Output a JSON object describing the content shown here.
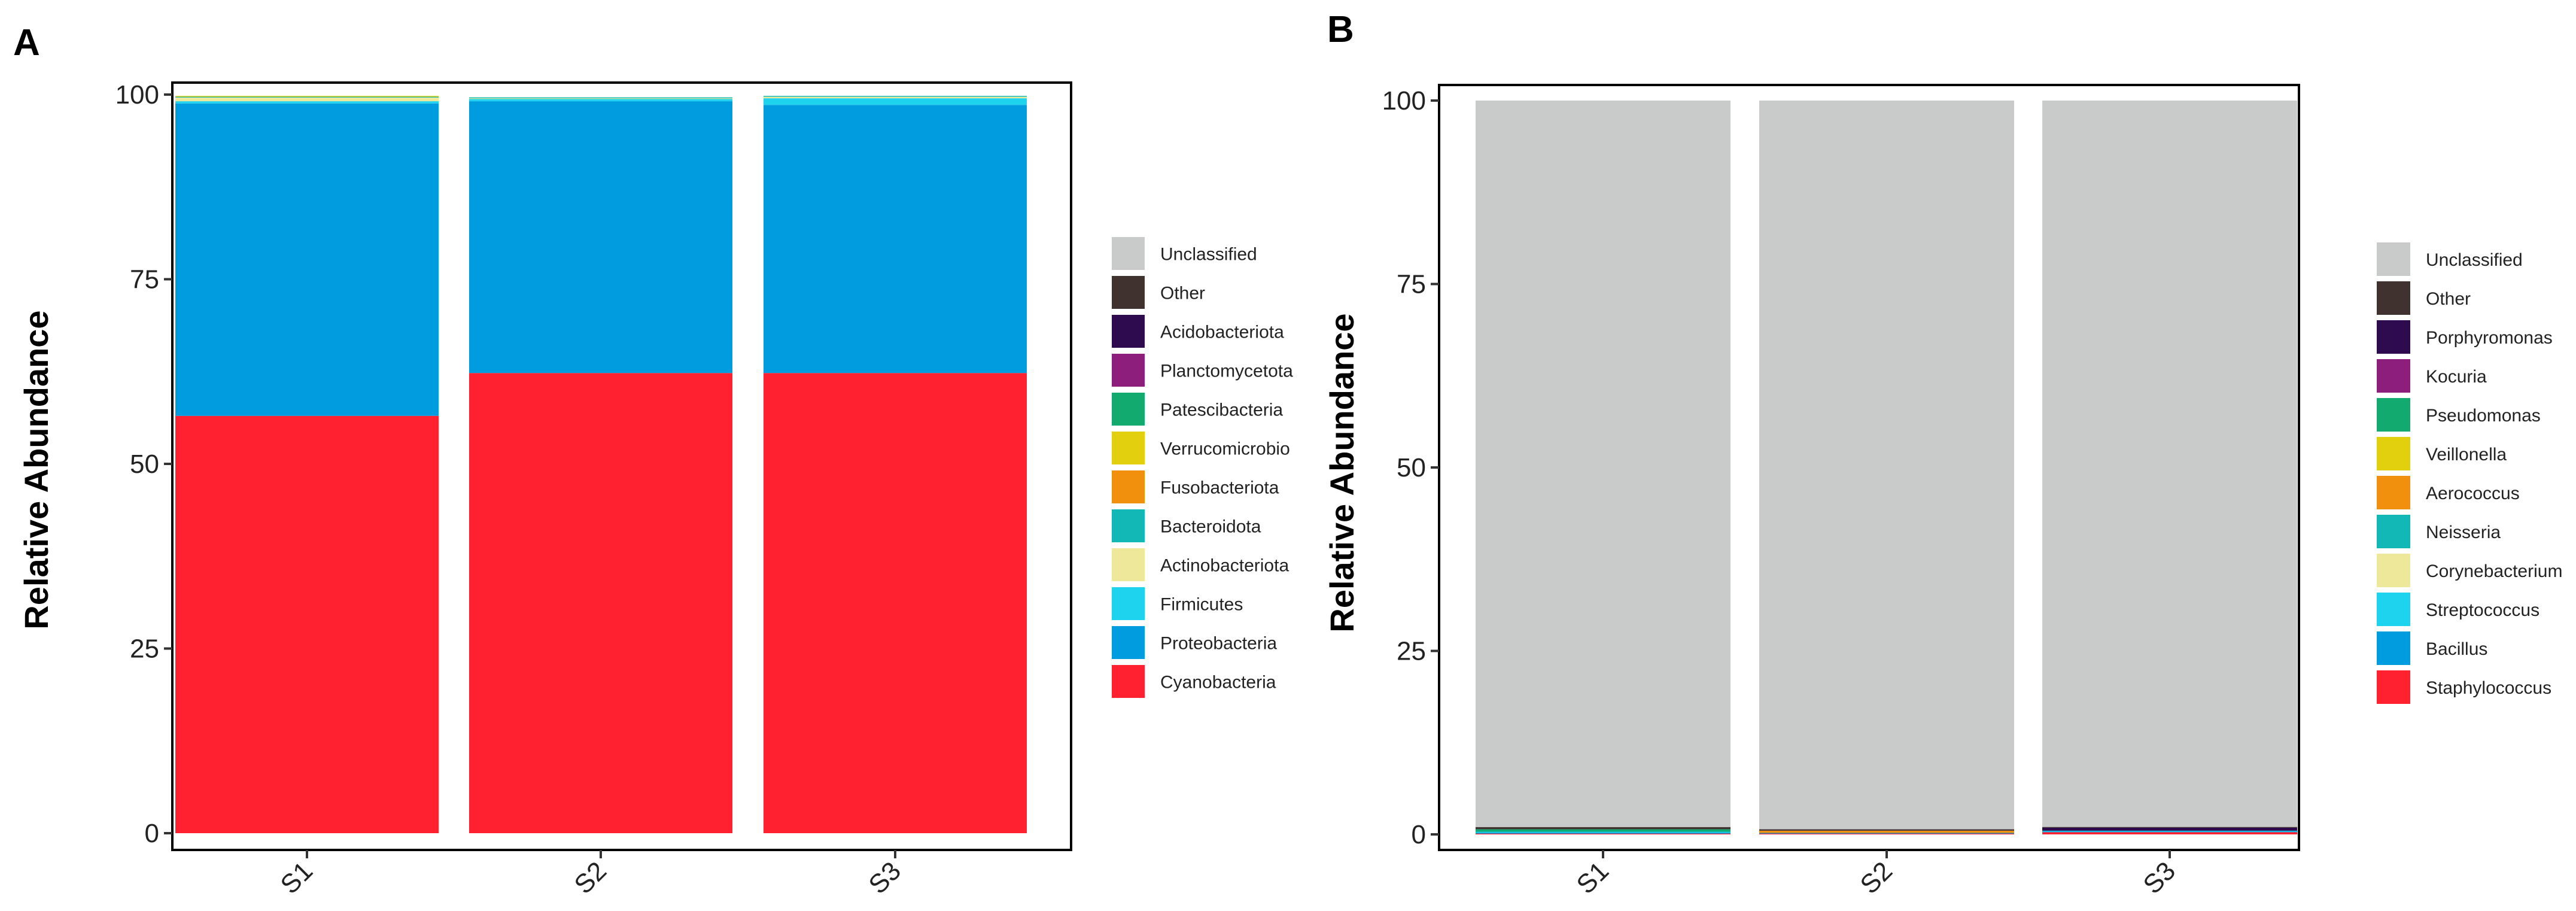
{
  "chart_data": [
    {
      "type": "bar",
      "stacked": true,
      "panel_label": "A",
      "ylabel": "Relative Abundance",
      "xlabel": "",
      "categories": [
        "S1",
        "S2",
        "S3"
      ],
      "ylim": [
        0,
        100
      ],
      "yticks": [
        "0",
        "25",
        "50",
        "75",
        "100"
      ],
      "legend_position": "right",
      "legend": [
        "Unclassified",
        "Other",
        "Acidobacteriota",
        "Planctomycetota",
        "Patescibacteria",
        "Verrucomicrobio",
        "Fusobacteriota",
        "Bacteroidota",
        "Actinobacteriota",
        "Firmicutes",
        "Proteobacteria",
        "Cyanobacteria"
      ],
      "series": [
        {
          "name": "Cyanobacteria",
          "color": "#FF2030",
          "values": [
            56.5,
            62.3,
            62.3
          ]
        },
        {
          "name": "Proteobacteria",
          "color": "#009CE0",
          "values": [
            42.3,
            36.8,
            36.3
          ]
        },
        {
          "name": "Firmicutes",
          "color": "#1ED3EE",
          "values": [
            0.3,
            0.3,
            0.9
          ]
        },
        {
          "name": "Actinobacteriota",
          "color": "#EDE89A",
          "values": [
            0.5,
            0.1,
            0.2
          ]
        },
        {
          "name": "Bacteroidota",
          "color": "#12B8B5",
          "values": [
            0.1,
            0.1,
            0.1
          ]
        },
        {
          "name": "Fusobacteriota",
          "color": "#F0900C",
          "values": [
            0.0,
            0.0,
            0.0
          ]
        },
        {
          "name": "Verrucomicrobio",
          "color": "#E2D00E",
          "values": [
            0.1,
            0.0,
            0.0
          ]
        },
        {
          "name": "Patescibacteria",
          "color": "#13AA70",
          "values": [
            0.0,
            0.0,
            0.0
          ]
        },
        {
          "name": "Planctomycetota",
          "color": "#8E1E7C",
          "values": [
            0.0,
            0.0,
            0.0
          ]
        },
        {
          "name": "Acidobacteriota",
          "color": "#2E0A4E",
          "values": [
            0.0,
            0.0,
            0.0
          ]
        },
        {
          "name": "Other",
          "color": "#3F322F",
          "values": [
            0.0,
            0.0,
            0.0
          ]
        },
        {
          "name": "Unclassified",
          "color": "#C9CBCA",
          "values": [
            0.0,
            0.0,
            0.0
          ]
        }
      ]
    },
    {
      "type": "bar",
      "stacked": true,
      "panel_label": "B",
      "ylabel": "Relative Abundance",
      "xlabel": "",
      "categories": [
        "S1",
        "S2",
        "S3"
      ],
      "ylim": [
        0,
        100
      ],
      "yticks": [
        "0",
        "25",
        "50",
        "75",
        "100"
      ],
      "legend_position": "right",
      "legend": [
        "Unclassified",
        "Other",
        "Porphyromonas",
        "Kocuria",
        "Pseudomonas",
        "Veillonella",
        "Aerococcus",
        "Neisseria",
        "Corynebacterium",
        "Streptococcus",
        "Bacillus",
        "Staphylococcus"
      ],
      "series": [
        {
          "name": "Staphylococcus",
          "color": "#FF2030",
          "values": [
            0.1,
            0.1,
            0.3
          ]
        },
        {
          "name": "Bacillus",
          "color": "#009CE0",
          "values": [
            0.1,
            0.1,
            0.1
          ]
        },
        {
          "name": "Streptococcus",
          "color": "#1ED3EE",
          "values": [
            0.1,
            0.0,
            0.1
          ]
        },
        {
          "name": "Corynebacterium",
          "color": "#EDE89A",
          "values": [
            0.0,
            0.0,
            0.0
          ]
        },
        {
          "name": "Neisseria",
          "color": "#12B8B5",
          "values": [
            0.1,
            0.0,
            0.0
          ]
        },
        {
          "name": "Aerococcus",
          "color": "#F0900C",
          "values": [
            0.0,
            0.3,
            0.0
          ]
        },
        {
          "name": "Veillonella",
          "color": "#E2D00E",
          "values": [
            0.0,
            0.0,
            0.0
          ]
        },
        {
          "name": "Pseudomonas",
          "color": "#13AA70",
          "values": [
            0.3,
            0.0,
            0.0
          ]
        },
        {
          "name": "Kocuria",
          "color": "#8E1E7C",
          "values": [
            0.0,
            0.0,
            0.0
          ]
        },
        {
          "name": "Porphyromonas",
          "color": "#2E0A4E",
          "values": [
            0.0,
            0.0,
            0.4
          ]
        },
        {
          "name": "Other",
          "color": "#3F322F",
          "values": [
            0.3,
            0.2,
            0.1
          ]
        },
        {
          "name": "Unclassified",
          "color": "#C9CBCA",
          "values": [
            99.0,
            99.3,
            99.0
          ]
        }
      ]
    }
  ]
}
